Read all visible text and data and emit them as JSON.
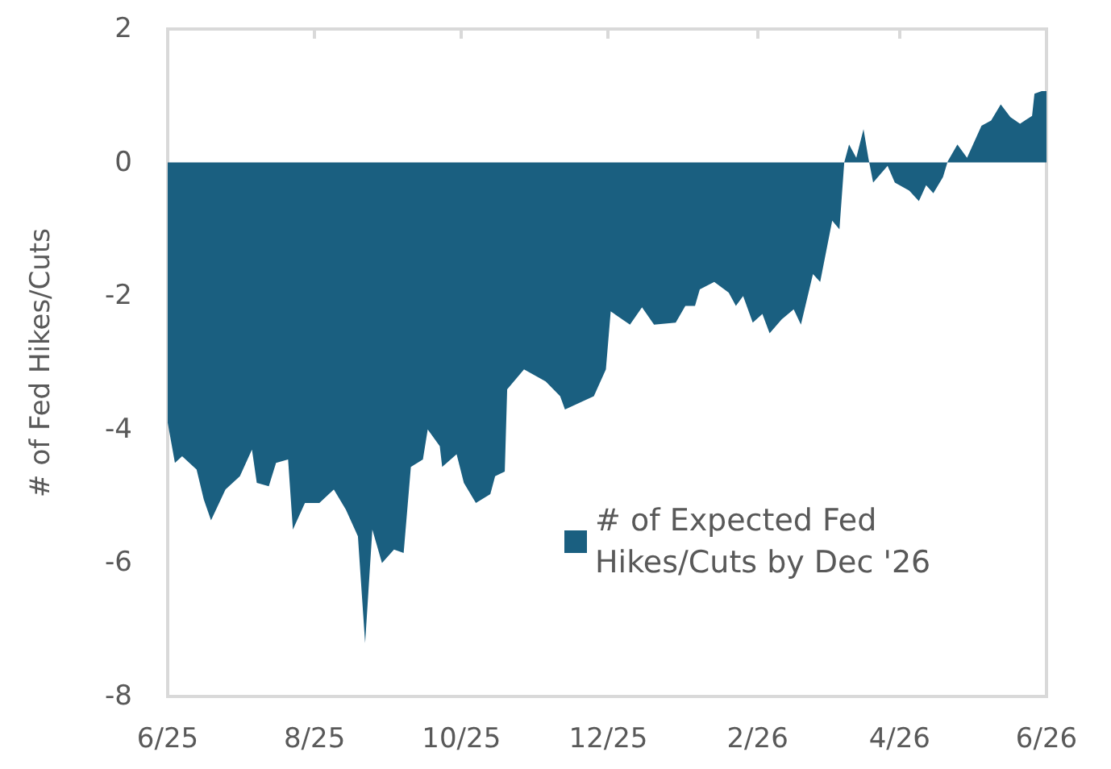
{
  "chart_data": {
    "type": "area",
    "ylabel": "# of Fed Hikes/Cuts",
    "xlim": [
      "2025-06-01",
      "2026-06-01"
    ],
    "ylim": [
      -8,
      2
    ],
    "yticks": [
      -8,
      -6,
      -4,
      -2,
      0,
      2
    ],
    "xticks": [
      {
        "value": "2025-06-01",
        "label": "6/25"
      },
      {
        "value": "2025-08-01",
        "label": "8/25"
      },
      {
        "value": "2025-10-01",
        "label": "10/25"
      },
      {
        "value": "2025-12-01",
        "label": "12/25"
      },
      {
        "value": "2026-02-01",
        "label": "2/26"
      },
      {
        "value": "2026-04-01",
        "label": "4/26"
      },
      {
        "value": "2026-06-01",
        "label": "6/26"
      }
    ],
    "grid": false,
    "legend": "right",
    "marker": "none",
    "series": [
      {
        "name": "# of Expected Fed Hikes/Cuts by Dec '26",
        "color": "#1a5f80",
        "x": [
          "2025-06-01",
          "2025-06-04",
          "2025-06-07",
          "2025-06-13",
          "2025-06-16",
          "2025-06-19",
          "2025-06-25",
          "2025-07-01",
          "2025-07-06",
          "2025-07-08",
          "2025-07-13",
          "2025-07-16",
          "2025-07-21",
          "2025-07-23",
          "2025-07-28",
          "2025-08-03",
          "2025-08-09",
          "2025-08-14",
          "2025-08-19",
          "2025-08-22",
          "2025-08-25",
          "2025-08-29",
          "2025-09-03",
          "2025-09-07",
          "2025-09-10",
          "2025-09-15",
          "2025-09-17",
          "2025-09-22",
          "2025-09-23",
          "2025-09-29",
          "2025-10-02",
          "2025-10-07",
          "2025-10-13",
          "2025-10-15",
          "2025-10-19",
          "2025-10-20",
          "2025-10-27",
          "2025-11-05",
          "2025-11-11",
          "2025-11-13",
          "2025-11-25",
          "2025-11-30",
          "2025-12-02",
          "2025-12-10",
          "2025-12-15",
          "2025-12-20",
          "2025-12-29",
          "2026-01-02",
          "2026-01-06",
          "2026-01-08",
          "2026-01-14",
          "2026-01-20",
          "2026-01-23",
          "2026-01-26",
          "2026-01-30",
          "2026-02-03",
          "2026-02-06",
          "2026-02-11",
          "2026-02-16",
          "2026-02-19",
          "2026-02-24",
          "2026-02-27",
          "2026-03-04",
          "2026-03-07",
          "2026-03-09",
          "2026-03-11",
          "2026-03-14",
          "2026-03-17",
          "2026-03-19",
          "2026-03-21",
          "2026-03-27",
          "2026-03-30",
          "2026-04-05",
          "2026-04-09",
          "2026-04-12",
          "2026-04-15",
          "2026-04-19",
          "2026-04-21",
          "2026-04-25",
          "2026-04-29",
          "2026-05-05",
          "2026-05-09",
          "2026-05-13",
          "2026-05-17",
          "2026-05-21",
          "2026-05-26",
          "2026-05-27",
          "2026-05-30",
          "2026-06-01"
        ],
        "values": [
          -3.9,
          -4.5,
          -4.4,
          -4.6,
          -5.05,
          -5.36,
          -4.9,
          -4.7,
          -4.3,
          -4.8,
          -4.85,
          -4.5,
          -4.45,
          -5.5,
          -5.1,
          -5.1,
          -4.9,
          -5.2,
          -5.6,
          -7.2,
          -5.5,
          -6.0,
          -5.8,
          -5.85,
          -4.56,
          -4.45,
          -4.0,
          -4.25,
          -4.56,
          -4.37,
          -4.8,
          -5.1,
          -4.97,
          -4.7,
          -4.63,
          -3.4,
          -3.1,
          -3.28,
          -3.5,
          -3.7,
          -3.5,
          -3.1,
          -2.23,
          -2.43,
          -2.17,
          -2.43,
          -2.4,
          -2.15,
          -2.15,
          -1.9,
          -1.79,
          -1.95,
          -2.15,
          -2.0,
          -2.4,
          -2.27,
          -2.56,
          -2.35,
          -2.2,
          -2.43,
          -1.67,
          -1.79,
          -0.87,
          -1.0,
          0,
          0.27,
          0.07,
          0.5,
          0.07,
          -0.3,
          -0.05,
          -0.3,
          -0.42,
          -0.58,
          -0.34,
          -0.46,
          -0.22,
          0.02,
          0.27,
          0.07,
          0.55,
          0.63,
          0.87,
          0.68,
          0.58,
          0.7,
          1.03,
          1.07,
          1.07
        ]
      }
    ]
  }
}
